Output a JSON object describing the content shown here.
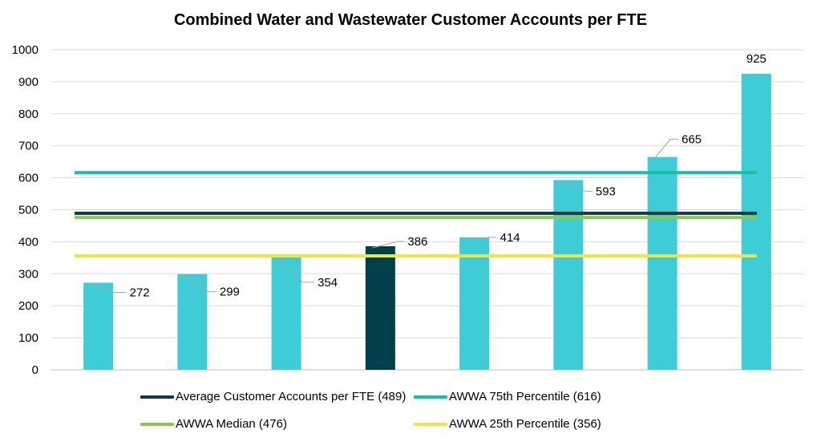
{
  "chart_data": {
    "type": "bar",
    "title": "Combined Water and Wastewater Customer Accounts per FTE",
    "categories": [
      "",
      "",
      "",
      "",
      "",
      "",
      "",
      ""
    ],
    "values": [
      272,
      299,
      354,
      386,
      414,
      593,
      665,
      925
    ],
    "highlight_index": 3,
    "bar_color": "#3ECDD6",
    "highlight_color": "#003F4C",
    "ylim": [
      0,
      1000
    ],
    "yticks": [
      "0",
      "100",
      "200",
      "300",
      "400",
      "500",
      "600",
      "700",
      "800",
      "900",
      "1000"
    ],
    "grid": true,
    "xlabel": "",
    "ylabel": "",
    "data_labels": [
      "272",
      "299",
      "354",
      "386",
      "414",
      "593",
      "665",
      "925"
    ],
    "reference_lines": [
      {
        "name": "Average Customer Accounts per FTE (489)",
        "value": 489,
        "color": "#0E3B47"
      },
      {
        "name": "AWWA 75th Percentile (616)",
        "value": 616,
        "color": "#12C2A3"
      },
      {
        "name": "AWWA Median (476)",
        "value": 476,
        "color": "#8CCB4A"
      },
      {
        "name": "AWWA 25th Percentile (356)",
        "value": 356,
        "color": "#F0E53C"
      }
    ],
    "legend_position": "bottom"
  }
}
